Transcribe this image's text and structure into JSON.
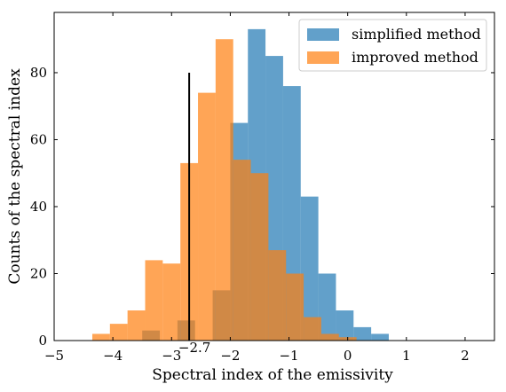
{
  "chart_data": {
    "type": "histogram",
    "xlabel": "Spectral index of the emissivity",
    "ylabel": "Counts of the spectral index",
    "xlim": [
      -5,
      2.5
    ],
    "ylim": [
      0,
      98
    ],
    "xticks": [
      -5,
      -4,
      -3,
      -2,
      -1,
      0,
      1,
      2
    ],
    "xtick_labels": [
      "−5",
      "−4",
      "−3",
      "−2",
      "−1",
      "0",
      "1",
      "2"
    ],
    "yticks": [
      0,
      20,
      40,
      60,
      80
    ],
    "ytick_labels": [
      "0",
      "20",
      "40",
      "60",
      "80"
    ],
    "grid": false,
    "legend_position": "top-right",
    "series": [
      {
        "name": "simplified method",
        "color": "#1f77b4",
        "opacity": 0.7,
        "bins": [
          {
            "x0": -3.5,
            "x1": -3.2,
            "count": 3
          },
          {
            "x0": -2.9,
            "x1": -2.6,
            "count": 6
          },
          {
            "x0": -2.3,
            "x1": -2.0,
            "count": 15
          },
          {
            "x0": -2.0,
            "x1": -1.7,
            "count": 65
          },
          {
            "x0": -1.7,
            "x1": -1.4,
            "count": 93
          },
          {
            "x0": -1.4,
            "x1": -1.1,
            "count": 85
          },
          {
            "x0": -1.1,
            "x1": -0.8,
            "count": 76
          },
          {
            "x0": -0.8,
            "x1": -0.5,
            "count": 43
          },
          {
            "x0": -0.5,
            "x1": -0.2,
            "count": 20
          },
          {
            "x0": -0.2,
            "x1": 0.1,
            "count": 9
          },
          {
            "x0": 0.1,
            "x1": 0.4,
            "count": 4
          },
          {
            "x0": 0.4,
            "x1": 0.7,
            "count": 2
          }
        ]
      },
      {
        "name": "improved method",
        "color": "#ff7f0e",
        "opacity": 0.7,
        "bins": [
          {
            "x0": -4.35,
            "x1": -4.05,
            "count": 2
          },
          {
            "x0": -4.05,
            "x1": -3.75,
            "count": 5
          },
          {
            "x0": -3.75,
            "x1": -3.45,
            "count": 9
          },
          {
            "x0": -3.45,
            "x1": -3.15,
            "count": 24
          },
          {
            "x0": -3.15,
            "x1": -2.85,
            "count": 23
          },
          {
            "x0": -2.85,
            "x1": -2.55,
            "count": 53
          },
          {
            "x0": -2.55,
            "x1": -2.25,
            "count": 74
          },
          {
            "x0": -2.25,
            "x1": -1.95,
            "count": 90
          },
          {
            "x0": -1.95,
            "x1": -1.65,
            "count": 54
          },
          {
            "x0": -1.65,
            "x1": -1.35,
            "count": 50
          },
          {
            "x0": -1.35,
            "x1": -1.05,
            "count": 27
          },
          {
            "x0": -1.05,
            "x1": -0.75,
            "count": 20
          },
          {
            "x0": -0.75,
            "x1": -0.45,
            "count": 7
          },
          {
            "x0": -0.45,
            "x1": -0.15,
            "count": 2
          },
          {
            "x0": -0.15,
            "x1": 0.15,
            "count": 1
          }
        ]
      }
    ],
    "annotations": [
      {
        "type": "vline",
        "x": -2.7,
        "y_top": 80,
        "label": "−2.7",
        "color": "#000000"
      }
    ]
  }
}
